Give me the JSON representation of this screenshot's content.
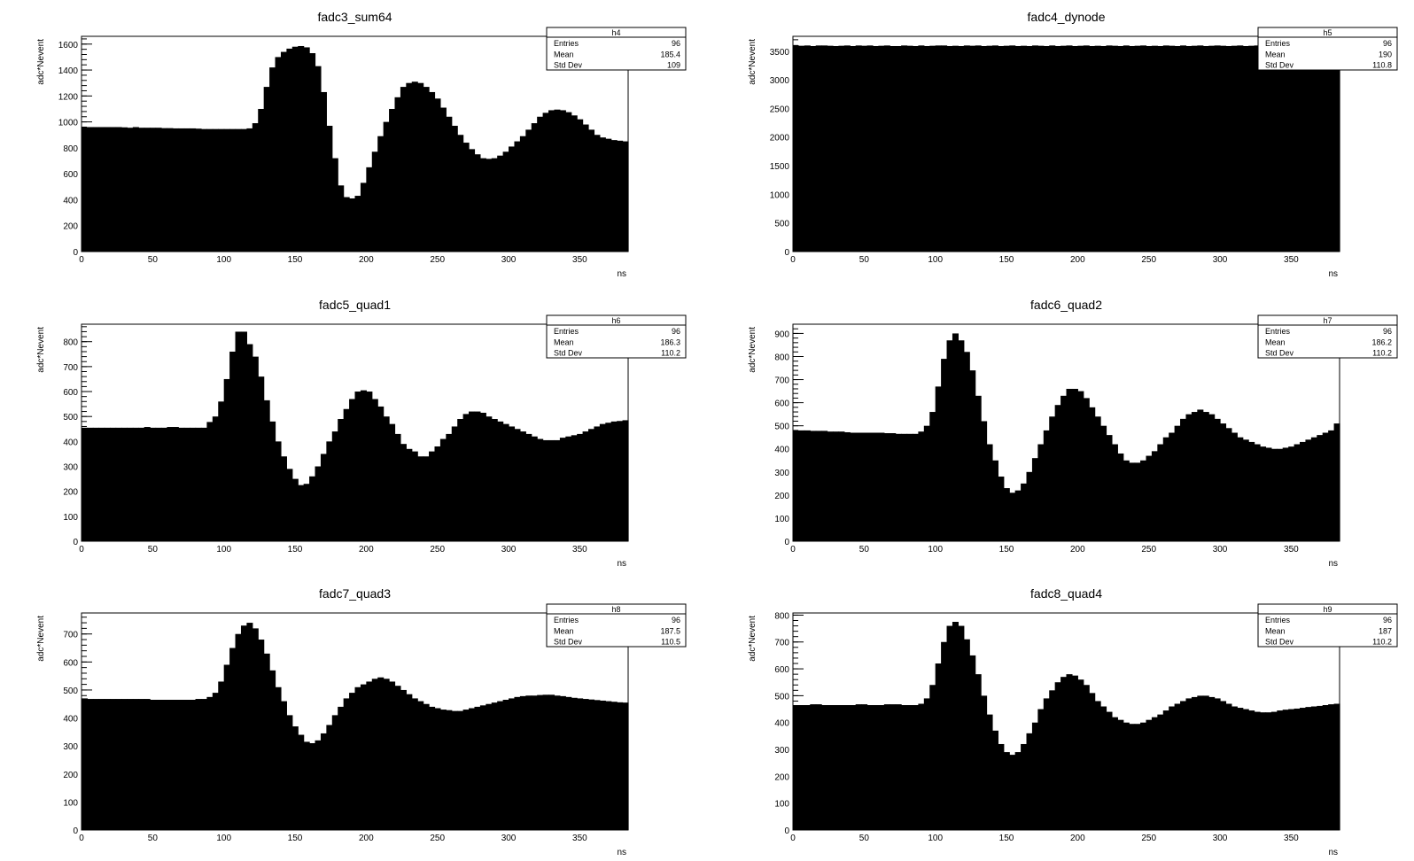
{
  "canvas": {
    "name": "c1"
  },
  "chart_data": [
    {
      "type": "bar",
      "title": "fadc3_sum64",
      "xlabel": "ns",
      "ylabel": "adc*Nevent",
      "xlim": [
        0,
        384
      ],
      "ylim": [
        0,
        1660
      ],
      "xticks": [
        0,
        50,
        100,
        150,
        200,
        250,
        300,
        350
      ],
      "yticks": [
        0,
        200,
        400,
        600,
        800,
        1000,
        1200,
        1400,
        1600
      ],
      "bin_width": 4,
      "stats": {
        "name": "h4",
        "entries_label": "Entries",
        "entries": "96",
        "mean_label": "Mean",
        "mean": "185.4",
        "stddev_label": "Std Dev",
        "stddev": "109"
      },
      "values": [
        960,
        960,
        960,
        960,
        960,
        960,
        960,
        958,
        955,
        960,
        955,
        955,
        955,
        955,
        952,
        952,
        950,
        950,
        950,
        950,
        948,
        945,
        945,
        945,
        945,
        945,
        945,
        945,
        945,
        950,
        990,
        1100,
        1270,
        1420,
        1500,
        1540,
        1565,
        1580,
        1585,
        1575,
        1530,
        1430,
        1230,
        970,
        720,
        510,
        420,
        410,
        430,
        530,
        650,
        770,
        890,
        1000,
        1100,
        1190,
        1270,
        1300,
        1310,
        1300,
        1270,
        1230,
        1180,
        1110,
        1040,
        970,
        900,
        840,
        790,
        750,
        720,
        715,
        720,
        740,
        770,
        810,
        850,
        890,
        940,
        990,
        1040,
        1070,
        1090,
        1095,
        1090,
        1075,
        1050,
        1020,
        980,
        940,
        900,
        880,
        870,
        860,
        855,
        850
      ]
    },
    {
      "type": "bar",
      "title": "fadc4_dynode",
      "xlabel": "ns",
      "ylabel": "adc*Nevent",
      "xlim": [
        0,
        384
      ],
      "ylim": [
        0,
        3760
      ],
      "xticks": [
        0,
        50,
        100,
        150,
        200,
        250,
        300,
        350
      ],
      "yticks": [
        0,
        500,
        1000,
        1500,
        2000,
        2500,
        3000,
        3500
      ],
      "bin_width": 4,
      "stats": {
        "name": "h5",
        "entries_label": "Entries",
        "entries": "96",
        "mean_label": "Mean",
        "mean": "190",
        "stddev_label": "Std Dev",
        "stddev": "110.8"
      },
      "values": [
        3600,
        3595,
        3600,
        3590,
        3600,
        3600,
        3595,
        3590,
        3595,
        3600,
        3590,
        3600,
        3595,
        3600,
        3590,
        3595,
        3600,
        3590,
        3590,
        3600,
        3595,
        3590,
        3600,
        3590,
        3595,
        3600,
        3600,
        3590,
        3595,
        3590,
        3600,
        3595,
        3600,
        3590,
        3595,
        3600,
        3590,
        3595,
        3600,
        3590,
        3595,
        3590,
        3600,
        3595,
        3590,
        3600,
        3590,
        3595,
        3600,
        3590,
        3595,
        3600,
        3590,
        3595,
        3590,
        3600,
        3595,
        3590,
        3600,
        3590,
        3595,
        3600,
        3590,
        3595,
        3590,
        3600,
        3595,
        3590,
        3600,
        3590,
        3595,
        3600,
        3590,
        3595,
        3600,
        3595,
        3590,
        3595,
        3600,
        3590,
        3595,
        3600,
        3590,
        3595,
        3600,
        3590,
        3595,
        3590,
        3600,
        3590,
        3595,
        3600,
        3590,
        3595,
        3590,
        3590
      ]
    },
    {
      "type": "bar",
      "title": "fadc5_quad1",
      "xlabel": "ns",
      "ylabel": "adc*Nevent",
      "xlim": [
        0,
        384
      ],
      "ylim": [
        0,
        870
      ],
      "xticks": [
        0,
        50,
        100,
        150,
        200,
        250,
        300,
        350
      ],
      "yticks": [
        0,
        100,
        200,
        300,
        400,
        500,
        600,
        700,
        800
      ],
      "bin_width": 4,
      "stats": {
        "name": "h6",
        "entries_label": "Entries",
        "entries": "96",
        "mean_label": "Mean",
        "mean": "186.3",
        "stddev_label": "Std Dev",
        "stddev": "110.2"
      },
      "values": [
        455,
        455,
        455,
        455,
        455,
        455,
        455,
        455,
        455,
        455,
        455,
        458,
        455,
        455,
        455,
        458,
        458,
        455,
        455,
        455,
        455,
        455,
        478,
        500,
        560,
        650,
        760,
        840,
        840,
        790,
        740,
        660,
        565,
        480,
        400,
        340,
        290,
        250,
        225,
        230,
        260,
        300,
        350,
        400,
        440,
        490,
        530,
        570,
        600,
        605,
        600,
        570,
        540,
        500,
        470,
        430,
        390,
        370,
        360,
        340,
        340,
        360,
        380,
        410,
        430,
        460,
        490,
        510,
        520,
        520,
        515,
        500,
        490,
        480,
        470,
        460,
        450,
        440,
        430,
        420,
        410,
        405,
        405,
        405,
        415,
        420,
        425,
        430,
        440,
        450,
        460,
        470,
        475,
        480,
        482,
        485
      ]
    },
    {
      "type": "bar",
      "title": "fadc6_quad2",
      "xlabel": "ns",
      "ylabel": "adc*Nevent",
      "xlim": [
        0,
        384
      ],
      "ylim": [
        0,
        940
      ],
      "xticks": [
        0,
        50,
        100,
        150,
        200,
        250,
        300,
        350
      ],
      "yticks": [
        0,
        100,
        200,
        300,
        400,
        500,
        600,
        700,
        800,
        900
      ],
      "bin_width": 4,
      "stats": {
        "name": "h7",
        "entries_label": "Entries",
        "entries": "96",
        "mean_label": "Mean",
        "mean": "186.2",
        "stddev_label": "Std Dev",
        "stddev": "110.2"
      },
      "values": [
        480,
        480,
        480,
        478,
        478,
        478,
        475,
        475,
        475,
        472,
        470,
        470,
        470,
        470,
        470,
        470,
        468,
        468,
        465,
        465,
        465,
        465,
        475,
        500,
        560,
        670,
        790,
        870,
        900,
        870,
        820,
        740,
        630,
        520,
        420,
        350,
        280,
        230,
        210,
        220,
        250,
        300,
        360,
        420,
        480,
        540,
        590,
        630,
        660,
        660,
        650,
        620,
        580,
        540,
        500,
        460,
        420,
        380,
        350,
        340,
        340,
        350,
        370,
        390,
        420,
        450,
        470,
        500,
        530,
        550,
        560,
        570,
        560,
        550,
        530,
        510,
        490,
        470,
        450,
        440,
        430,
        420,
        410,
        405,
        400,
        400,
        405,
        410,
        420,
        430,
        440,
        450,
        460,
        470,
        480,
        510
      ]
    },
    {
      "type": "bar",
      "title": "fadc7_quad3",
      "xlabel": "ns",
      "ylabel": "adc*Nevent",
      "xlim": [
        0,
        384
      ],
      "ylim": [
        0,
        775
      ],
      "xticks": [
        0,
        50,
        100,
        150,
        200,
        250,
        300,
        350
      ],
      "yticks": [
        0,
        100,
        200,
        300,
        400,
        500,
        600,
        700
      ],
      "bin_width": 4,
      "stats": {
        "name": "h8",
        "entries_label": "Entries",
        "entries": "96",
        "mean_label": "Mean",
        "mean": "187.5",
        "stddev_label": "Std Dev",
        "stddev": "110.5"
      },
      "values": [
        470,
        468,
        468,
        468,
        468,
        468,
        468,
        468,
        468,
        468,
        468,
        468,
        465,
        465,
        465,
        465,
        465,
        465,
        465,
        465,
        468,
        468,
        475,
        490,
        530,
        590,
        650,
        700,
        730,
        740,
        720,
        680,
        630,
        570,
        510,
        460,
        410,
        370,
        340,
        315,
        310,
        320,
        345,
        375,
        410,
        440,
        470,
        490,
        510,
        520,
        530,
        540,
        545,
        540,
        530,
        515,
        500,
        485,
        470,
        460,
        450,
        440,
        435,
        430,
        428,
        425,
        425,
        430,
        435,
        440,
        445,
        450,
        455,
        460,
        465,
        470,
        475,
        478,
        480,
        480,
        482,
        483,
        483,
        480,
        478,
        475,
        472,
        470,
        468,
        466,
        464,
        462,
        460,
        458,
        456,
        455
      ]
    },
    {
      "type": "bar",
      "title": "fadc8_quad4",
      "xlabel": "ns",
      "ylabel": "adc*Nevent",
      "xlim": [
        0,
        384
      ],
      "ylim": [
        0,
        808
      ],
      "xticks": [
        0,
        50,
        100,
        150,
        200,
        250,
        300,
        350
      ],
      "yticks": [
        0,
        100,
        200,
        300,
        400,
        500,
        600,
        700,
        800
      ],
      "bin_width": 4,
      "stats": {
        "name": "h9",
        "entries_label": "Entries",
        "entries": "96",
        "mean_label": "Mean",
        "mean": "187",
        "stddev_label": "Std Dev",
        "stddev": "110.2"
      },
      "values": [
        465,
        465,
        465,
        468,
        468,
        465,
        465,
        465,
        465,
        465,
        465,
        468,
        468,
        465,
        465,
        465,
        468,
        468,
        468,
        465,
        465,
        465,
        470,
        490,
        540,
        620,
        700,
        760,
        775,
        760,
        710,
        650,
        580,
        500,
        430,
        370,
        320,
        290,
        280,
        290,
        320,
        360,
        400,
        450,
        490,
        520,
        550,
        570,
        580,
        575,
        560,
        540,
        510,
        480,
        460,
        440,
        420,
        410,
        400,
        395,
        395,
        400,
        410,
        420,
        430,
        445,
        460,
        470,
        480,
        490,
        495,
        500,
        500,
        495,
        490,
        480,
        470,
        460,
        455,
        450,
        445,
        440,
        438,
        438,
        440,
        445,
        448,
        450,
        452,
        455,
        458,
        460,
        462,
        465,
        468,
        470
      ]
    }
  ]
}
